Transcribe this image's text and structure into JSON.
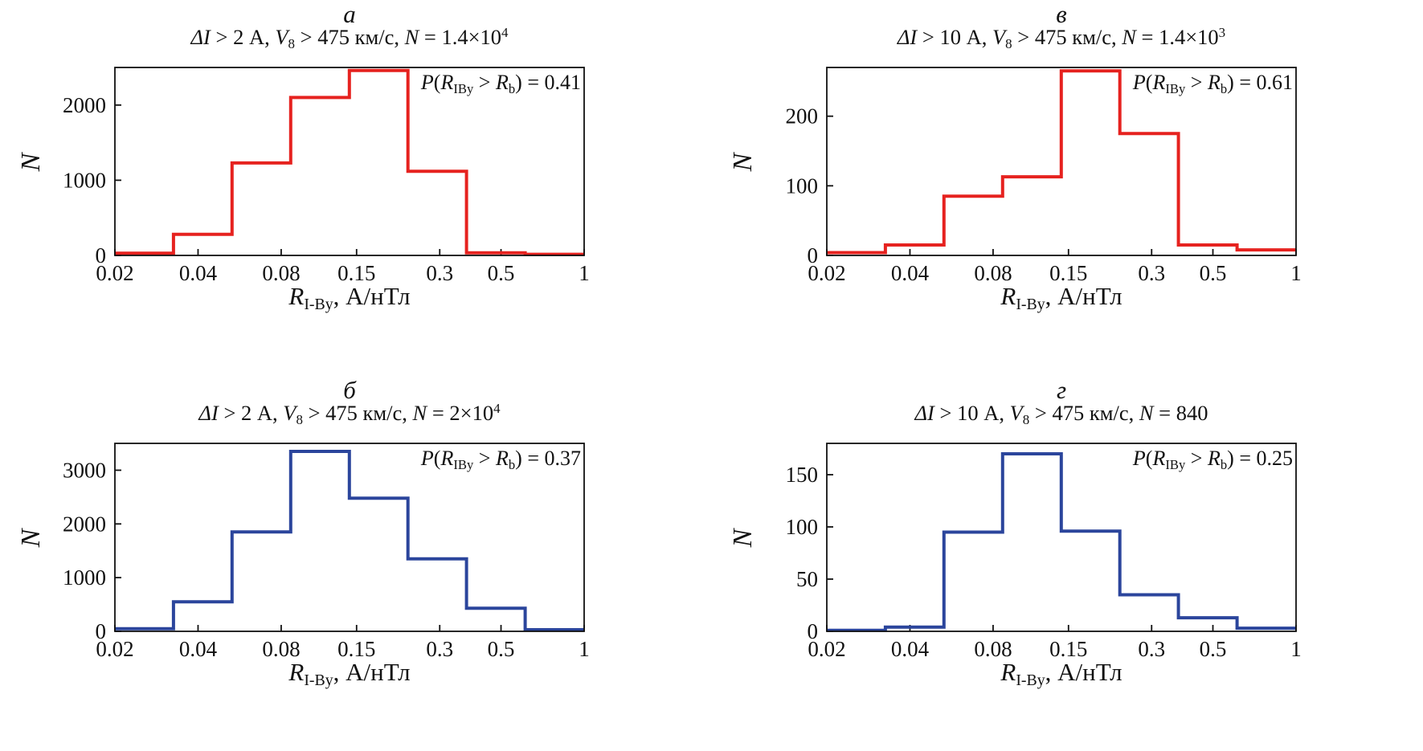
{
  "figure": {
    "background": "#ffffff"
  },
  "chart_data": [
    {
      "type": "bar",
      "panel_label": "а",
      "title_text": "ΔI > 2 А, V₈ > 475 км/с, N = 1.4×10⁴",
      "annotation_text": "P(R_IBy > R_b) = 0.41",
      "xlabel_text": "R_I-By, А/нТл",
      "ylabel": "N",
      "color": "#e6221f",
      "xscale": "log",
      "xlim": [
        0.02,
        1
      ],
      "ylim": [
        0,
        2500
      ],
      "xticks": [
        "0.02",
        "0.04",
        "0.08",
        "0.15",
        "0.3",
        "0.5",
        "1"
      ],
      "xtick_values": [
        0.02,
        0.04,
        0.08,
        0.15,
        0.3,
        0.5,
        1
      ],
      "yticks": [
        0,
        1000,
        2000
      ],
      "bin_edges": [
        0.02,
        0.0326,
        0.0531,
        0.0866,
        0.1412,
        0.2301,
        0.3751,
        0.6116,
        1.0
      ],
      "values": [
        30,
        280,
        1230,
        2100,
        2460,
        1120,
        35,
        15
      ],
      "title": [
        {
          "t": "ΔI",
          "s": "i"
        },
        {
          "t": " > 2 А, ",
          "s": "n"
        },
        {
          "t": "V",
          "s": "i"
        },
        {
          "t": "8",
          "s": "sub"
        },
        {
          "t": " > 475 км/с, ",
          "s": "n"
        },
        {
          "t": "N",
          "s": "i"
        },
        {
          "t": " = 1.4×10",
          "s": "n"
        },
        {
          "t": "4",
          "s": "sup"
        }
      ],
      "annotation": [
        {
          "t": "P",
          "s": "i"
        },
        {
          "t": "(",
          "s": "n"
        },
        {
          "t": "R",
          "s": "i"
        },
        {
          "t": "IBy",
          "s": "sub"
        },
        {
          "t": " > ",
          "s": "n"
        },
        {
          "t": "R",
          "s": "i"
        },
        {
          "t": "b",
          "s": "sub"
        },
        {
          "t": ") = 0.41",
          "s": "n"
        }
      ],
      "xlabel": [
        {
          "t": "R",
          "s": "i"
        },
        {
          "t": "I-By",
          "s": "sub"
        },
        {
          "t": ", А/нТл",
          "s": "n"
        }
      ]
    },
    {
      "type": "bar",
      "panel_label": "в",
      "title_text": "ΔI > 10 А, V₈ > 475 км/с, N = 1.4×10³",
      "annotation_text": "P(R_IBy > R_b) = 0.61",
      "xlabel_text": "R_I-By, А/нТл",
      "ylabel": "N",
      "color": "#e6221f",
      "xscale": "log",
      "xlim": [
        0.02,
        1
      ],
      "ylim": [
        0,
        270
      ],
      "xticks": [
        "0.02",
        "0.04",
        "0.08",
        "0.15",
        "0.3",
        "0.5",
        "1"
      ],
      "xtick_values": [
        0.02,
        0.04,
        0.08,
        0.15,
        0.3,
        0.5,
        1
      ],
      "yticks": [
        0,
        100,
        200
      ],
      "bin_edges": [
        0.02,
        0.0326,
        0.0531,
        0.0866,
        0.1412,
        0.2301,
        0.3751,
        0.6116,
        1.0
      ],
      "values": [
        4,
        15,
        85,
        113,
        265,
        175,
        15,
        8
      ],
      "title": [
        {
          "t": "ΔI",
          "s": "i"
        },
        {
          "t": " > 10 А, ",
          "s": "n"
        },
        {
          "t": "V",
          "s": "i"
        },
        {
          "t": "8",
          "s": "sub"
        },
        {
          "t": " > 475 км/с, ",
          "s": "n"
        },
        {
          "t": "N",
          "s": "i"
        },
        {
          "t": " = 1.4×10",
          "s": "n"
        },
        {
          "t": "3",
          "s": "sup"
        }
      ],
      "annotation": [
        {
          "t": "P",
          "s": "i"
        },
        {
          "t": "(",
          "s": "n"
        },
        {
          "t": "R",
          "s": "i"
        },
        {
          "t": "IBy",
          "s": "sub"
        },
        {
          "t": " > ",
          "s": "n"
        },
        {
          "t": "R",
          "s": "i"
        },
        {
          "t": "b",
          "s": "sub"
        },
        {
          "t": ") = 0.61",
          "s": "n"
        }
      ],
      "xlabel": [
        {
          "t": "R",
          "s": "i"
        },
        {
          "t": "I-By",
          "s": "sub"
        },
        {
          "t": ", А/нТл",
          "s": "n"
        }
      ]
    },
    {
      "type": "bar",
      "panel_label": "б",
      "title_text": "ΔI > 2 А, V₈ > 475 км/с, N = 2×10⁴",
      "annotation_text": "P(R_IBy > R_b) = 0.37",
      "xlabel_text": "R_I-By, А/нТл",
      "ylabel": "N",
      "color": "#2b459c",
      "xscale": "log",
      "xlim": [
        0.02,
        1
      ],
      "ylim": [
        0,
        3500
      ],
      "xticks": [
        "0.02",
        "0.04",
        "0.08",
        "0.15",
        "0.3",
        "0.5",
        "1"
      ],
      "xtick_values": [
        0.02,
        0.04,
        0.08,
        0.15,
        0.3,
        0.5,
        1
      ],
      "yticks": [
        0,
        1000,
        2000,
        3000
      ],
      "bin_edges": [
        0.02,
        0.0326,
        0.0531,
        0.0866,
        0.1412,
        0.2301,
        0.3751,
        0.6116,
        1.0
      ],
      "values": [
        50,
        550,
        1850,
        3350,
        2480,
        1350,
        430,
        30
      ],
      "title": [
        {
          "t": "ΔI",
          "s": "i"
        },
        {
          "t": " > 2 А, ",
          "s": "n"
        },
        {
          "t": "V",
          "s": "i"
        },
        {
          "t": "8",
          "s": "sub"
        },
        {
          "t": " > 475 км/с, ",
          "s": "n"
        },
        {
          "t": "N",
          "s": "i"
        },
        {
          "t": " = 2×10",
          "s": "n"
        },
        {
          "t": "4",
          "s": "sup"
        }
      ],
      "annotation": [
        {
          "t": "P",
          "s": "i"
        },
        {
          "t": "(",
          "s": "n"
        },
        {
          "t": "R",
          "s": "i"
        },
        {
          "t": "IBy",
          "s": "sub"
        },
        {
          "t": " > ",
          "s": "n"
        },
        {
          "t": "R",
          "s": "i"
        },
        {
          "t": "b",
          "s": "sub"
        },
        {
          "t": ") = 0.37",
          "s": "n"
        }
      ],
      "xlabel": [
        {
          "t": "R",
          "s": "i"
        },
        {
          "t": "I-By",
          "s": "sub"
        },
        {
          "t": ", А/нТл",
          "s": "n"
        }
      ]
    },
    {
      "type": "bar",
      "panel_label": "г",
      "title_text": "ΔI > 10 А, V₈ > 475 км/с, N = 840",
      "annotation_text": "P(R_IBy > R_b) = 0.25",
      "xlabel_text": "R_I-By, А/нТл",
      "ylabel": "N",
      "color": "#2b459c",
      "xscale": "log",
      "xlim": [
        0.02,
        1
      ],
      "ylim": [
        0,
        180
      ],
      "xticks": [
        "0.02",
        "0.04",
        "0.08",
        "0.15",
        "0.3",
        "0.5",
        "1"
      ],
      "xtick_values": [
        0.02,
        0.04,
        0.08,
        0.15,
        0.3,
        0.5,
        1
      ],
      "yticks": [
        0,
        50,
        100,
        150
      ],
      "bin_edges": [
        0.02,
        0.0326,
        0.0531,
        0.0866,
        0.1412,
        0.2301,
        0.3751,
        0.6116,
        1.0
      ],
      "values": [
        1,
        4,
        95,
        170,
        96,
        35,
        13,
        3
      ],
      "title": [
        {
          "t": "ΔI",
          "s": "i"
        },
        {
          "t": " > 10 А, ",
          "s": "n"
        },
        {
          "t": "V",
          "s": "i"
        },
        {
          "t": "8",
          "s": "sub"
        },
        {
          "t": " > 475 км/с, ",
          "s": "n"
        },
        {
          "t": "N",
          "s": "i"
        },
        {
          "t": " = 840",
          "s": "n"
        }
      ],
      "annotation": [
        {
          "t": "P",
          "s": "i"
        },
        {
          "t": "(",
          "s": "n"
        },
        {
          "t": "R",
          "s": "i"
        },
        {
          "t": "IBy",
          "s": "sub"
        },
        {
          "t": " > ",
          "s": "n"
        },
        {
          "t": "R",
          "s": "i"
        },
        {
          "t": "b",
          "s": "sub"
        },
        {
          "t": ") = 0.25",
          "s": "n"
        }
      ],
      "xlabel": [
        {
          "t": "R",
          "s": "i"
        },
        {
          "t": "I-By",
          "s": "sub"
        },
        {
          "t": ", А/нТл",
          "s": "n"
        }
      ]
    }
  ]
}
